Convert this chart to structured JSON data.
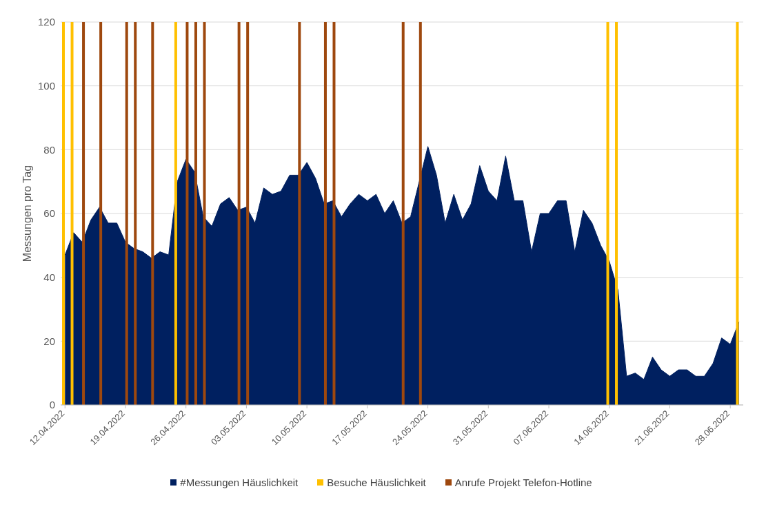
{
  "chart_data": {
    "type": "area",
    "ylabel": "Messungen pro Tag",
    "x": [
      "2022-04-12",
      "2022-04-13",
      "2022-04-14",
      "2022-04-15",
      "2022-04-16",
      "2022-04-17",
      "2022-04-18",
      "2022-04-19",
      "2022-04-20",
      "2022-04-21",
      "2022-04-22",
      "2022-04-23",
      "2022-04-24",
      "2022-04-25",
      "2022-04-26",
      "2022-04-27",
      "2022-04-28",
      "2022-04-29",
      "2022-04-30",
      "2022-05-01",
      "2022-05-02",
      "2022-05-03",
      "2022-05-04",
      "2022-05-05",
      "2022-05-06",
      "2022-05-07",
      "2022-05-08",
      "2022-05-09",
      "2022-05-10",
      "2022-05-11",
      "2022-05-12",
      "2022-05-13",
      "2022-05-14",
      "2022-05-15",
      "2022-05-16",
      "2022-05-17",
      "2022-05-18",
      "2022-05-19",
      "2022-05-20",
      "2022-05-21",
      "2022-05-22",
      "2022-05-23",
      "2022-05-24",
      "2022-05-25",
      "2022-05-26",
      "2022-05-27",
      "2022-05-28",
      "2022-05-29",
      "2022-05-30",
      "2022-05-31",
      "2022-06-01",
      "2022-06-02",
      "2022-06-03",
      "2022-06-04",
      "2022-06-05",
      "2022-06-06",
      "2022-06-07",
      "2022-06-08",
      "2022-06-09",
      "2022-06-10",
      "2022-06-11",
      "2022-06-12",
      "2022-06-13",
      "2022-06-14",
      "2022-06-15",
      "2022-06-16",
      "2022-06-17",
      "2022-06-18",
      "2022-06-19",
      "2022-06-20",
      "2022-06-21",
      "2022-06-22",
      "2022-06-23",
      "2022-06-24",
      "2022-06-25",
      "2022-06-26",
      "2022-06-27",
      "2022-06-28",
      "2022-06-29"
    ],
    "xlim": [
      "2022-04-11T12:00",
      "2022-06-29T12:00"
    ],
    "xticks": [
      {
        "value": "2022-04-12",
        "label": "12.04.2022"
      },
      {
        "value": "2022-04-19",
        "label": "19.04.2022"
      },
      {
        "value": "2022-04-26",
        "label": "26.04.2022"
      },
      {
        "value": "2022-05-03",
        "label": "03.05.2022"
      },
      {
        "value": "2022-05-10",
        "label": "10.05.2022"
      },
      {
        "value": "2022-05-17",
        "label": "17.05.2022"
      },
      {
        "value": "2022-05-24",
        "label": "24.05.2022"
      },
      {
        "value": "2022-05-31",
        "label": "31.05.2022"
      },
      {
        "value": "2022-06-07",
        "label": "07.06.2022"
      },
      {
        "value": "2022-06-14",
        "label": "14.06.2022"
      },
      {
        "value": "2022-06-21",
        "label": "21.06.2022"
      },
      {
        "value": "2022-06-28",
        "label": "28.06.2022"
      }
    ],
    "ylim": [
      0,
      120
    ],
    "yticks": [
      0,
      20,
      40,
      60,
      80,
      100,
      120
    ],
    "grid": "y",
    "legend": "bottom",
    "series": [
      {
        "name": "#Messungen Häuslichkeit",
        "color": "#002060",
        "values": [
          47,
          54,
          51,
          58,
          62,
          57,
          57,
          51,
          49,
          48,
          46,
          48,
          47,
          70,
          77,
          73,
          59,
          56,
          63,
          65,
          61,
          62,
          57,
          68,
          66,
          67,
          72,
          72,
          76,
          71,
          63,
          64,
          59,
          63,
          66,
          64,
          66,
          60,
          64,
          57,
          59,
          70,
          81,
          72,
          57,
          66,
          58,
          63,
          75,
          67,
          64,
          78,
          64,
          64,
          48,
          60,
          60,
          64,
          64,
          48,
          61,
          57,
          50,
          45,
          36,
          9,
          10,
          8,
          15,
          11,
          9,
          11,
          11,
          9,
          9,
          13,
          21,
          19,
          26
        ]
      },
      {
        "name": "Besuche Häuslichkeit",
        "type": "bar",
        "color": "#ffc000",
        "values": [
          120,
          120,
          null,
          null,
          null,
          null,
          null,
          null,
          null,
          null,
          null,
          null,
          null,
          120,
          null,
          null,
          null,
          null,
          null,
          null,
          null,
          null,
          null,
          null,
          null,
          null,
          null,
          null,
          null,
          null,
          null,
          null,
          null,
          null,
          null,
          null,
          null,
          null,
          null,
          null,
          null,
          null,
          null,
          null,
          null,
          null,
          null,
          null,
          null,
          null,
          null,
          null,
          null,
          null,
          null,
          null,
          null,
          null,
          null,
          null,
          null,
          null,
          null,
          120,
          120,
          null,
          null,
          null,
          null,
          null,
          null,
          null,
          null,
          null,
          null,
          null,
          null,
          null,
          120
        ]
      },
      {
        "name": "Anrufe Projekt Telefon-Hotline",
        "type": "bar",
        "color": "#9e480e",
        "values": [
          null,
          null,
          120,
          null,
          120,
          null,
          null,
          120,
          120,
          null,
          120,
          null,
          null,
          null,
          120,
          120,
          120,
          null,
          null,
          null,
          120,
          120,
          null,
          null,
          null,
          null,
          null,
          120,
          null,
          null,
          120,
          120,
          null,
          null,
          null,
          null,
          null,
          null,
          null,
          120,
          null,
          120,
          null,
          null,
          null,
          null,
          null,
          null,
          null,
          null,
          null,
          null,
          null,
          null,
          null,
          null,
          null,
          null,
          null,
          null,
          null,
          null,
          null,
          null,
          null,
          null,
          null,
          null,
          null,
          null,
          null,
          null,
          null,
          null,
          null,
          null,
          null,
          null,
          null
        ]
      }
    ]
  }
}
